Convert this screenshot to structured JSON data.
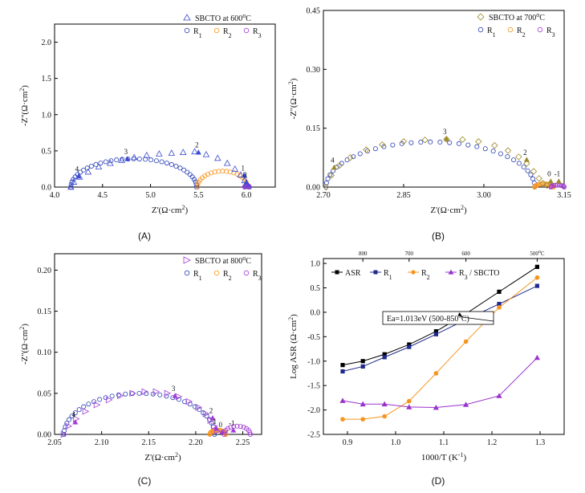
{
  "figure": {
    "panel_labels": [
      "(A)",
      "(B)",
      "(C)",
      "(D)"
    ]
  },
  "chart_data": [
    {
      "type": "scatter",
      "panel": "(A)",
      "xlabel": "Z'(Ω·cm²)",
      "ylabel": "-Z''(Ω·cm²)",
      "xlim": [
        4.0,
        6.3
      ],
      "ylim": [
        0.0,
        2.25
      ],
      "xticks": [
        "4.0",
        "4.5",
        "5.0",
        "5.5",
        "6.0"
      ],
      "yticks": [
        "0.0",
        "0.5",
        "1.0",
        "1.5",
        "2.0"
      ],
      "legend": [
        "SBCTO at 600°C",
        "R1",
        "R2",
        "R3"
      ],
      "arcs": [
        {
          "series": "R1",
          "x0": 4.17,
          "x1": 5.48,
          "peak": 0.39
        },
        {
          "series": "R2",
          "x0": 5.49,
          "x1": 6.01,
          "peak": 0.22
        },
        {
          "series": "R3",
          "x0": 5.98,
          "x1": 6.03,
          "peak": 0.02
        }
      ],
      "total": [
        [
          4.17,
          0.0
        ],
        [
          4.2,
          0.07
        ],
        [
          4.26,
          0.14
        ],
        [
          4.35,
          0.21
        ],
        [
          4.46,
          0.28
        ],
        [
          4.58,
          0.33
        ],
        [
          4.7,
          0.37
        ],
        [
          4.83,
          0.41
        ],
        [
          4.96,
          0.44
        ],
        [
          5.09,
          0.46
        ],
        [
          5.22,
          0.47
        ],
        [
          5.34,
          0.48
        ],
        [
          5.46,
          0.49
        ],
        [
          5.58,
          0.45
        ],
        [
          5.7,
          0.4
        ],
        [
          5.8,
          0.33
        ],
        [
          5.88,
          0.25
        ],
        [
          5.94,
          0.17
        ],
        [
          5.98,
          0.09
        ],
        [
          6.0,
          0.04
        ],
        [
          6.02,
          0.01
        ]
      ],
      "markers": [
        {
          "label": "4",
          "x": 4.25,
          "y": 0.15
        },
        {
          "label": "3",
          "x": 4.76,
          "y": 0.39
        },
        {
          "label": "2",
          "x": 5.5,
          "y": 0.48
        },
        {
          "label": "1",
          "x": 5.98,
          "y": 0.16
        },
        {
          "label": "0",
          "x": 6.0,
          "y": 0.07
        }
      ]
    },
    {
      "type": "scatter",
      "panel": "(B)",
      "xlabel": "Z'(Ω·cm²)",
      "ylabel": "-Z''(Ω·cm²)",
      "xlim": [
        2.7,
        3.15
      ],
      "ylim": [
        0.0,
        0.45
      ],
      "xticks": [
        "2.70",
        "2.85",
        "3.00",
        "3.15"
      ],
      "yticks": [
        "0.00",
        "0.15",
        "0.30",
        "0.45"
      ],
      "legend": [
        "SBCTO at 700°C",
        "R1",
        "R2",
        "R3"
      ],
      "arcs": [
        {
          "series": "R1",
          "x0": 2.705,
          "x1": 3.095,
          "peak": 0.115
        },
        {
          "series": "R2",
          "x0": 3.095,
          "x1": 3.13,
          "peak": 0.008
        },
        {
          "series": "R3",
          "x0": 3.125,
          "x1": 3.15,
          "peak": 0.005
        }
      ],
      "total": [
        [
          2.705,
          0.0
        ],
        [
          2.715,
          0.03
        ],
        [
          2.73,
          0.055
        ],
        [
          2.75,
          0.075
        ],
        [
          2.78,
          0.095
        ],
        [
          2.81,
          0.108
        ],
        [
          2.85,
          0.116
        ],
        [
          2.89,
          0.12
        ],
        [
          2.93,
          0.122
        ],
        [
          2.96,
          0.121
        ],
        [
          2.99,
          0.116
        ],
        [
          3.02,
          0.106
        ],
        [
          3.045,
          0.093
        ],
        [
          3.065,
          0.077
        ],
        [
          3.08,
          0.06
        ],
        [
          3.093,
          0.04
        ],
        [
          3.103,
          0.022
        ],
        [
          3.11,
          0.01
        ],
        [
          3.118,
          0.004
        ]
      ],
      "markers": [
        {
          "label": "4",
          "x": 2.72,
          "y": 0.05
        },
        {
          "label": "3",
          "x": 2.93,
          "y": 0.123
        },
        {
          "label": "2",
          "x": 3.08,
          "y": 0.07
        },
        {
          "label": "0",
          "x": 3.125,
          "y": 0.015
        },
        {
          "label": "-1",
          "x": 3.14,
          "y": 0.015
        }
      ]
    },
    {
      "type": "scatter",
      "panel": "(C)",
      "xlabel": "Z'(Ω·cm²)",
      "ylabel": "-Z''(Ω·cm²)",
      "xlim": [
        2.05,
        2.27
      ],
      "ylim": [
        0.0,
        0.22
      ],
      "xticks": [
        "2.05",
        "2.10",
        "2.15",
        "2.20",
        "2.25"
      ],
      "yticks": [
        "0.00",
        "0.05",
        "0.10",
        "0.15",
        "0.20"
      ],
      "legend": [
        "SBCTO at 800°C",
        "R1",
        "R2",
        "R3"
      ],
      "arcs": [
        {
          "series": "R1",
          "x0": 2.06,
          "x1": 2.22,
          "peak": 0.05
        },
        {
          "series": "R2",
          "x0": 2.215,
          "x1": 2.232,
          "peak": 0.005
        },
        {
          "series": "R3",
          "x0": 2.23,
          "x1": 2.258,
          "peak": 0.01
        }
      ],
      "total": [
        [
          2.06,
          0.0
        ],
        [
          2.065,
          0.01
        ],
        [
          2.073,
          0.019
        ],
        [
          2.083,
          0.028
        ],
        [
          2.095,
          0.036
        ],
        [
          2.108,
          0.042
        ],
        [
          2.12,
          0.047
        ],
        [
          2.133,
          0.05
        ],
        [
          2.146,
          0.052
        ],
        [
          2.158,
          0.052
        ],
        [
          2.17,
          0.05
        ],
        [
          2.182,
          0.046
        ],
        [
          2.193,
          0.04
        ],
        [
          2.203,
          0.033
        ],
        [
          2.211,
          0.025
        ],
        [
          2.216,
          0.017
        ],
        [
          2.22,
          0.01
        ],
        [
          2.223,
          0.004
        ]
      ],
      "markers": [
        {
          "label": "4",
          "x": 2.072,
          "y": 0.015
        },
        {
          "label": "3",
          "x": 2.178,
          "y": 0.047
        },
        {
          "label": "2",
          "x": 2.218,
          "y": 0.02
        },
        {
          "label": "1",
          "x": 2.222,
          "y": 0.007
        },
        {
          "label": "0",
          "x": 2.228,
          "y": 0.003
        },
        {
          "label": "-1",
          "x": 2.24,
          "y": 0.005
        }
      ]
    },
    {
      "type": "line",
      "panel": "(D)",
      "xlabel": "1000/T (K⁻¹)",
      "ylabel": "Log ASR (Ω·cm²)",
      "xlim": [
        0.85,
        1.35
      ],
      "ylim": [
        -2.5,
        1.1
      ],
      "xticks": [
        "0.9",
        "1.0",
        "1.1",
        "1.2",
        "1.3"
      ],
      "yticks": [
        "-2.5",
        "-2.0",
        "-1.5",
        "-1.0",
        "-0.5",
        "0.0",
        "0.5",
        "1.0"
      ],
      "top_axis_ticks": [
        "800",
        "700",
        "600",
        "500°C"
      ],
      "top_axis_positions": [
        0.932,
        1.028,
        1.146,
        1.294
      ],
      "annotation": "Ea=1.013eV (500-850°C)",
      "x": [
        0.89,
        0.932,
        0.977,
        1.028,
        1.084,
        1.146,
        1.215,
        1.294
      ],
      "series": [
        {
          "name": "ASR",
          "color": "#000000",
          "marker": "square",
          "values": [
            -1.08,
            -1.0,
            -0.86,
            -0.66,
            -0.39,
            -0.03,
            0.42,
            0.93
          ]
        },
        {
          "name": "R1",
          "color": "#1f2a8c",
          "marker": "square",
          "values": [
            -1.21,
            -1.11,
            -0.92,
            -0.71,
            -0.45,
            -0.15,
            0.17,
            0.54
          ]
        },
        {
          "name": "R2",
          "color": "#f7941d",
          "marker": "circle",
          "values": [
            -2.19,
            -2.19,
            -2.13,
            -1.82,
            -1.25,
            -0.6,
            0.1,
            0.71
          ]
        },
        {
          "name": "R3 / SBCTO",
          "color": "#9933cc",
          "marker": "triangle",
          "values": [
            -1.81,
            -1.88,
            -1.88,
            -1.94,
            -1.95,
            -1.89,
            -1.71,
            -0.93
          ]
        }
      ]
    }
  ]
}
